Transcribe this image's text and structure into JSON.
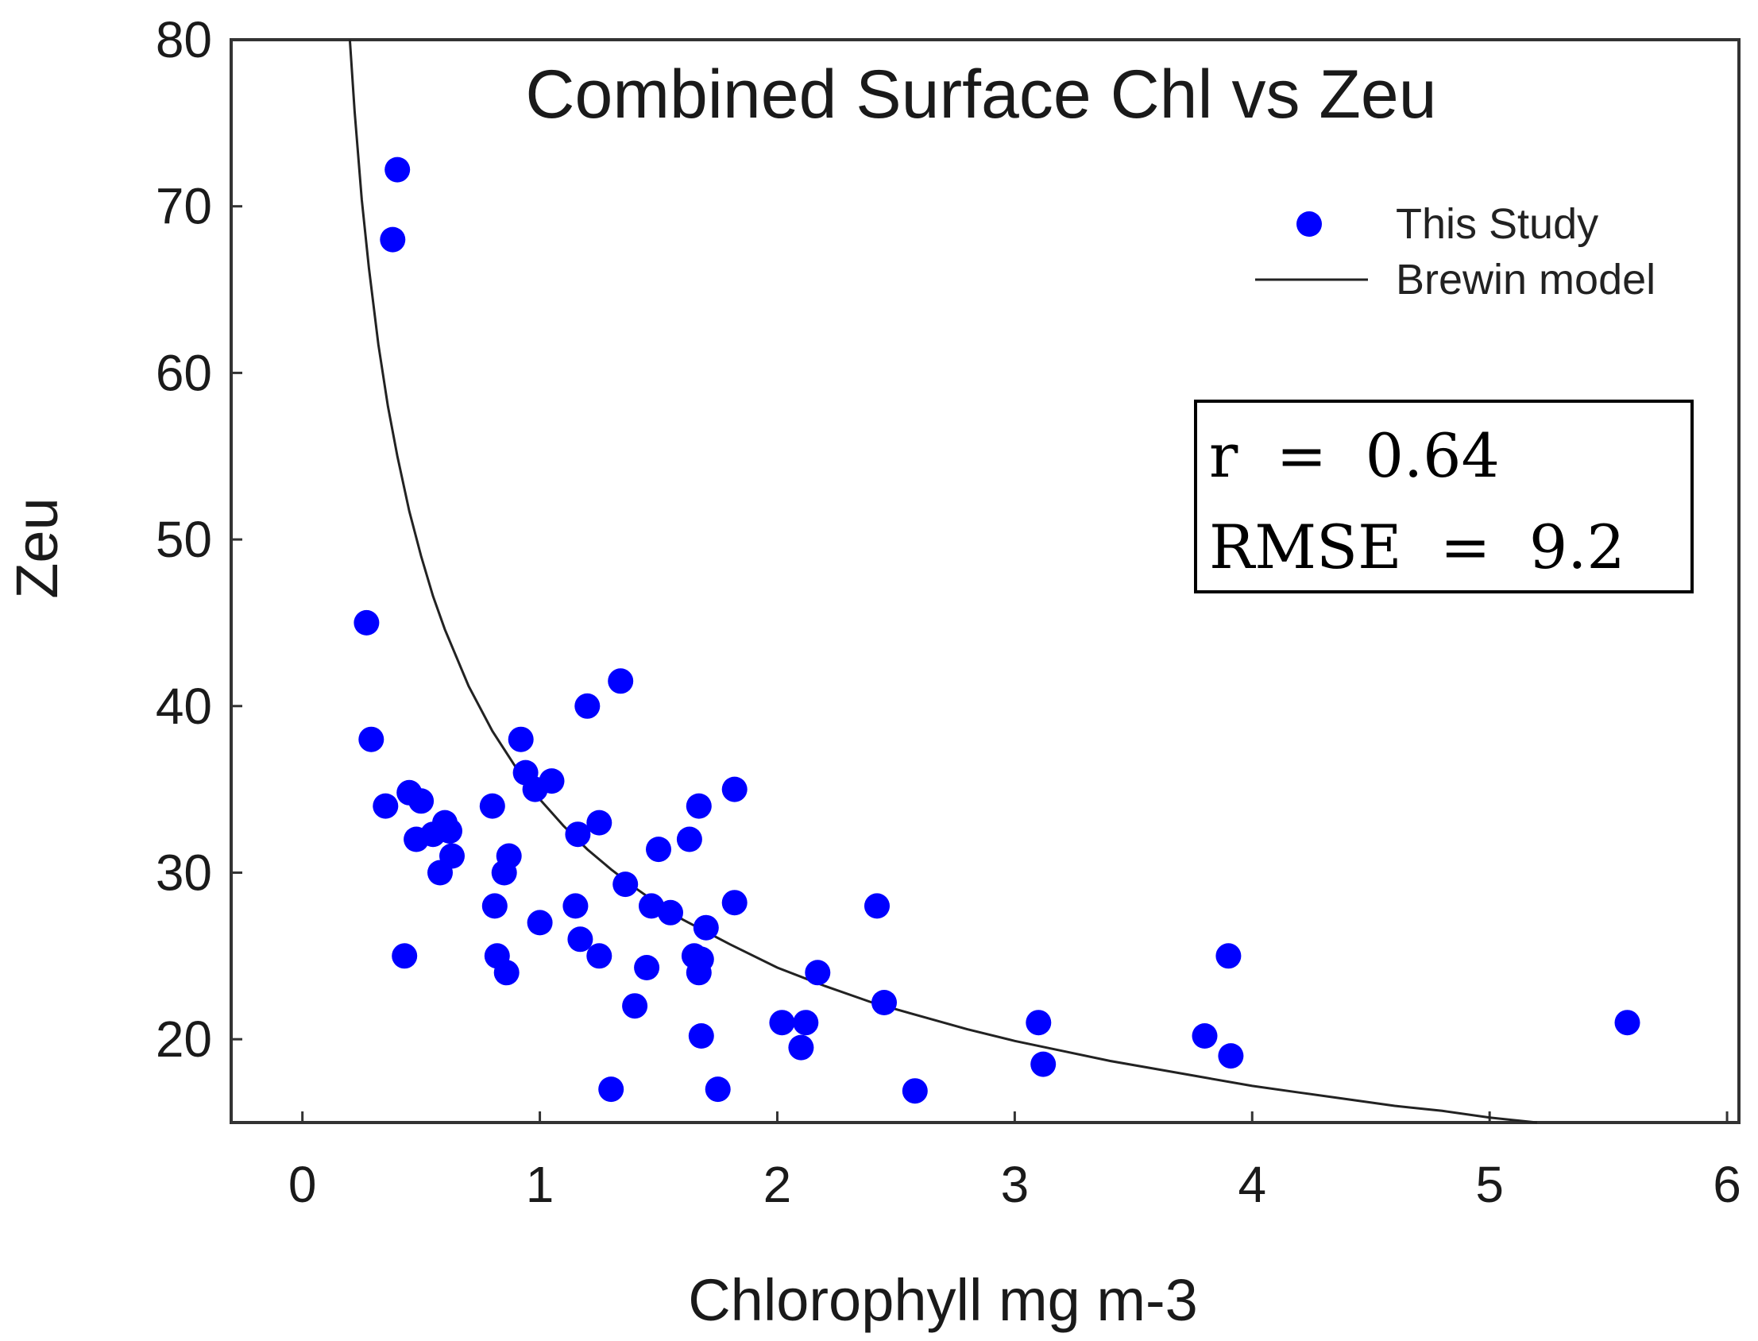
{
  "chart_data": {
    "type": "scatter",
    "title": "Combined Surface Chl vs Zeu",
    "xlabel": "Chlorophyll mg m-3",
    "ylabel": "Zeu",
    "xlim": [
      -0.3,
      6.05
    ],
    "ylim": [
      15,
      80
    ],
    "xticks": [
      0,
      1,
      2,
      3,
      4,
      5,
      6
    ],
    "yticks": [
      20,
      30,
      40,
      50,
      60,
      70,
      80
    ],
    "grid": false,
    "legend_position": "top-right",
    "series": [
      {
        "name": "This Study",
        "kind": "scatter",
        "color": "#0000ff",
        "x": [
          0.4,
          0.38,
          0.27,
          0.29,
          0.35,
          0.45,
          0.5,
          0.48,
          0.55,
          0.6,
          0.62,
          0.58,
          0.63,
          0.43,
          0.81,
          0.8,
          0.82,
          0.85,
          0.87,
          0.86,
          0.92,
          0.94,
          0.98,
          1.05,
          1.0,
          1.2,
          1.25,
          1.16,
          1.15,
          1.17,
          1.25,
          1.3,
          1.34,
          1.36,
          1.4,
          1.45,
          1.47,
          1.5,
          1.55,
          1.63,
          1.65,
          1.67,
          1.68,
          1.67,
          1.68,
          1.7,
          1.75,
          1.82,
          1.82,
          2.02,
          2.1,
          2.12,
          2.17,
          2.42,
          2.45,
          2.58,
          3.1,
          3.12,
          3.8,
          3.9,
          3.91,
          5.58
        ],
        "y": [
          72.2,
          68.0,
          45.0,
          38.0,
          34.0,
          34.8,
          34.3,
          32.0,
          32.3,
          33.0,
          32.5,
          30.0,
          31.0,
          25.0,
          28.0,
          34.0,
          25.0,
          30.0,
          31.0,
          24.0,
          38.0,
          36.0,
          35.0,
          35.5,
          27.0,
          40.0,
          33.0,
          32.3,
          28.0,
          26.0,
          25.0,
          17.0,
          41.5,
          29.3,
          22.0,
          24.3,
          28.0,
          31.4,
          27.6,
          32.0,
          25.0,
          34.0,
          24.8,
          24.0,
          20.2,
          26.7,
          17.0,
          35.0,
          28.2,
          21.0,
          19.5,
          21.0,
          24.0,
          28.0,
          22.2,
          16.9,
          21.0,
          18.5,
          20.2,
          25.0,
          19.0,
          21.0
        ]
      },
      {
        "name": "Brewin model",
        "kind": "line",
        "color": "#222222",
        "x_range": [
          0.2,
          5.2
        ],
        "points": [
          [
            0.2,
            80.0
          ],
          [
            0.22,
            75.7
          ],
          [
            0.25,
            70.4
          ],
          [
            0.28,
            66.3
          ],
          [
            0.32,
            61.7
          ],
          [
            0.36,
            58.0
          ],
          [
            0.4,
            55.0
          ],
          [
            0.45,
            51.7
          ],
          [
            0.5,
            49.0
          ],
          [
            0.55,
            46.6
          ],
          [
            0.6,
            44.6
          ],
          [
            0.7,
            41.2
          ],
          [
            0.8,
            38.5
          ],
          [
            0.9,
            36.3
          ],
          [
            1.0,
            34.4
          ],
          [
            1.1,
            32.8
          ],
          [
            1.2,
            31.4
          ],
          [
            1.3,
            30.2
          ],
          [
            1.4,
            29.1
          ],
          [
            1.5,
            28.1
          ],
          [
            1.6,
            27.2
          ],
          [
            1.8,
            25.7
          ],
          [
            2.0,
            24.3
          ],
          [
            2.2,
            23.2
          ],
          [
            2.4,
            22.2
          ],
          [
            2.6,
            21.4
          ],
          [
            2.8,
            20.6
          ],
          [
            3.0,
            19.9
          ],
          [
            3.2,
            19.3
          ],
          [
            3.4,
            18.7
          ],
          [
            3.6,
            18.2
          ],
          [
            3.8,
            17.7
          ],
          [
            4.0,
            17.2
          ],
          [
            4.2,
            16.8
          ],
          [
            4.4,
            16.4
          ],
          [
            4.6,
            16.0
          ],
          [
            4.8,
            15.7
          ],
          [
            5.0,
            15.3
          ],
          [
            5.2,
            15.0
          ]
        ]
      }
    ],
    "annotations": {
      "stats_lines": [
        "r  =  0.64",
        "RMSE  =  9.2"
      ]
    }
  }
}
